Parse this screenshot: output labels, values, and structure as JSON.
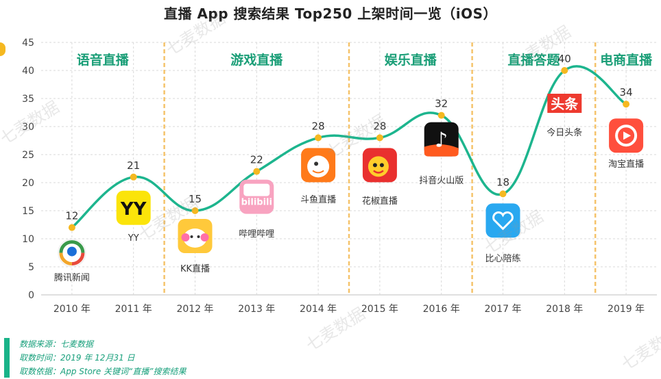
{
  "title": "直播 App 搜索结果 Top250 上架时间一览（iOS）",
  "colors": {
    "line": "#1db58e",
    "point": "#f5b820",
    "section_text": "#1a9e77",
    "divider": "#f5c36b",
    "grid": "#d9d9d9"
  },
  "chart_data": {
    "type": "line",
    "categories": [
      "2010 年",
      "2011 年",
      "2012 年",
      "2013 年",
      "2014 年",
      "2015 年",
      "2016 年",
      "2017 年",
      "2018 年",
      "2019 年"
    ],
    "values": [
      12,
      21,
      15,
      22,
      28,
      28,
      32,
      18,
      40,
      34
    ],
    "ylim": [
      0,
      45
    ],
    "yticks": [
      0,
      5,
      10,
      15,
      20,
      25,
      30,
      35,
      40,
      45
    ],
    "grid": true,
    "smooth": true,
    "sections": [
      {
        "label": "语音直播",
        "from": 0,
        "to": 1
      },
      {
        "label": "游戏直播",
        "from": 2,
        "to": 4
      },
      {
        "label": "娱乐直播",
        "from": 5,
        "to": 6
      },
      {
        "label": "直播答题",
        "from": 7,
        "to": 8
      },
      {
        "label": "电商直播",
        "from": 9,
        "to": 9
      }
    ],
    "apps": [
      {
        "name": "腾讯新闻",
        "icon": "tencent-news-icon"
      },
      {
        "name": "YY",
        "icon": "yy-icon"
      },
      {
        "name": "KK直播",
        "icon": "kk-live-icon"
      },
      {
        "name": "哔哩哔哩",
        "icon": "bilibili-icon"
      },
      {
        "name": "斗鱼直播",
        "icon": "douyu-icon"
      },
      {
        "name": "花椒直播",
        "icon": "huajiao-icon"
      },
      {
        "name": "抖音火山版",
        "icon": "douyin-icon"
      },
      {
        "name": "比心陪练",
        "icon": "bixin-icon"
      },
      {
        "name": "今日头条",
        "icon": "toutiao-icon"
      },
      {
        "name": "淘宝直播",
        "icon": "taobao-live-icon"
      }
    ]
  },
  "watermark": "七麦数据",
  "footer": {
    "source": "数据来源：七麦数据",
    "date": "取数时间：2019 年 12月31 日",
    "basis": "取数依据：App Store 关键词“直播”搜索结果"
  }
}
